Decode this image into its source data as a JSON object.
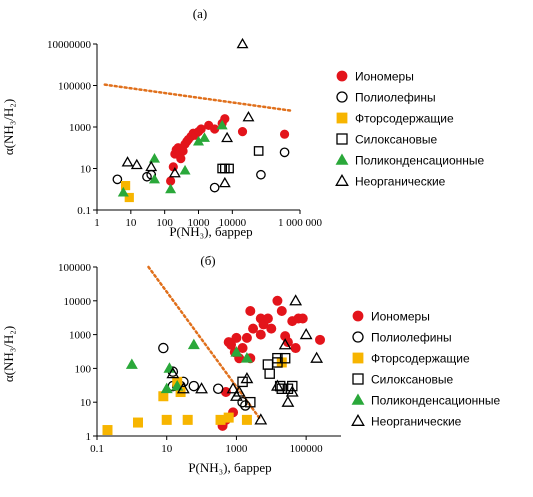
{
  "colors": {
    "ionomers": "#e3141b",
    "fluorinated": "#f7b500",
    "polycondensation": "#2aa83a",
    "trendline": "#e0701c",
    "black": "#000000"
  },
  "legend_labels": [
    "Иономеры",
    "Полиолефины",
    "Фторсодержащие",
    "Силоксановые",
    "Поликонденсационные",
    "Неорганические"
  ],
  "chart_data": [
    {
      "panel_label": "(а)",
      "type": "scatter",
      "xlabel": "P(NH₃), баррер",
      "ylabel": "α(NH₃/H₂)",
      "x_scale": "log",
      "y_scale": "log",
      "xlim": [
        1,
        1000000
      ],
      "ylim": [
        0.1,
        10000000
      ],
      "x_ticks": [
        1,
        10,
        100,
        1000,
        10000,
        1000000
      ],
      "x_tick_labels": [
        "1",
        "10",
        "100",
        "1000",
        "10000",
        "1 000 000"
      ],
      "y_ticks": [
        0.1,
        10,
        1000,
        100000,
        10000000
      ],
      "y_tick_labels": [
        "0.1",
        "10",
        "1000",
        "100000",
        "10000000"
      ],
      "trendline": [
        [
          1.7,
          110000
        ],
        [
          600000,
          6000
        ]
      ],
      "legend_placement": "right",
      "series": [
        {
          "name": "Иономеры",
          "marker": "circle-filled",
          "points": [
            [
              150,
              2.5
            ],
            [
              180,
              12
            ],
            [
              200,
              50
            ],
            [
              220,
              80
            ],
            [
              250,
              100
            ],
            [
              280,
              60
            ],
            [
              300,
              30
            ],
            [
              350,
              70
            ],
            [
              400,
              150
            ],
            [
              450,
              200
            ],
            [
              500,
              250
            ],
            [
              600,
              350
            ],
            [
              700,
              500
            ],
            [
              800,
              400
            ],
            [
              1000,
              600
            ],
            [
              1200,
              800
            ],
            [
              2000,
              1200
            ],
            [
              3000,
              800
            ],
            [
              5000,
              1500
            ],
            [
              6000,
              2500
            ],
            [
              20000,
              600
            ],
            [
              350000,
              450
            ]
          ]
        },
        {
          "name": "Полиолефины",
          "marker": "circle-open",
          "points": [
            [
              4,
              3
            ],
            [
              30,
              4
            ],
            [
              40,
              5
            ],
            [
              3000,
              1.2
            ],
            [
              70000,
              5
            ],
            [
              350000,
              60
            ]
          ]
        },
        {
          "name": "Фторсодержащие",
          "marker": "square-filled",
          "points": [
            [
              7,
              1.5
            ],
            [
              9,
              0.4
            ]
          ]
        },
        {
          "name": "Силоксановые",
          "marker": "square-open",
          "points": [
            [
              5000,
              10
            ],
            [
              6000,
              10
            ],
            [
              8000,
              10
            ],
            [
              60000,
              70
            ]
          ]
        },
        {
          "name": "Поликонденсационные",
          "marker": "triangle-filled",
          "points": [
            [
              6,
              0.7
            ],
            [
              50,
              30
            ],
            [
              50,
              3
            ],
            [
              150,
              1
            ],
            [
              400,
              8
            ],
            [
              1000,
              200
            ],
            [
              1500,
              300
            ],
            [
              5000,
              1200
            ]
          ]
        },
        {
          "name": "Неорганические",
          "marker": "triangle-open",
          "points": [
            [
              8,
              20
            ],
            [
              15,
              15
            ],
            [
              40,
              12
            ],
            [
              200,
              6
            ],
            [
              6000,
              2
            ],
            [
              7000,
              300
            ],
            [
              20000,
              10000000
            ],
            [
              30000,
              3000
            ]
          ]
        }
      ]
    },
    {
      "panel_label": "(б)",
      "type": "scatter",
      "xlabel": "P(NH₃), баррер",
      "ylabel": "α(NH₃/H₂)",
      "x_scale": "log",
      "y_scale": "log",
      "xlim": [
        0.1,
        1000000
      ],
      "ylim": [
        1,
        100000
      ],
      "x_ticks": [
        0.1,
        10,
        1000,
        100000
      ],
      "x_tick_labels": [
        "0.1",
        "10",
        "1000",
        "100000"
      ],
      "y_ticks": [
        1,
        10,
        100,
        1000,
        10000,
        100000
      ],
      "y_tick_labels": [
        "1",
        "10",
        "100",
        "1000",
        "10000",
        "100000"
      ],
      "trendline": [
        [
          3,
          100000
        ],
        [
          5000,
          3
        ]
      ],
      "legend_placement": "right",
      "series": [
        {
          "name": "Иономеры",
          "marker": "circle-filled",
          "points": [
            [
              400,
              2
            ],
            [
              500,
              20
            ],
            [
              500,
              3
            ],
            [
              600,
              600
            ],
            [
              700,
              500
            ],
            [
              800,
              5
            ],
            [
              900,
              300
            ],
            [
              1000,
              800
            ],
            [
              1200,
              200
            ],
            [
              1500,
              400
            ],
            [
              2000,
              800
            ],
            [
              2500,
              200
            ],
            [
              2500,
              5000
            ],
            [
              3000,
              1500
            ],
            [
              5000,
              1000
            ],
            [
              5000,
              3000
            ],
            [
              6000,
              2000
            ],
            [
              8000,
              3000
            ],
            [
              10000,
              1500
            ],
            [
              15000,
              10000
            ],
            [
              20000,
              5000
            ],
            [
              25000,
              900
            ],
            [
              30000,
              600
            ],
            [
              40000,
              2500
            ],
            [
              50000,
              400
            ],
            [
              60000,
              3000
            ],
            [
              80000,
              3000
            ],
            [
              250000,
              700
            ]
          ]
        },
        {
          "name": "Полиолефины",
          "marker": "circle-open",
          "points": [
            [
              8,
              400
            ],
            [
              15,
              30
            ],
            [
              15,
              80
            ],
            [
              20,
              30
            ],
            [
              25,
              30
            ],
            [
              30,
              40
            ],
            [
              60,
              30
            ],
            [
              300,
              25
            ],
            [
              1500,
              10
            ],
            [
              1800,
              8
            ]
          ]
        },
        {
          "name": "Фторсодержащие",
          "marker": "square-filled",
          "points": [
            [
              0.2,
              1.5
            ],
            [
              1.5,
              2.5
            ],
            [
              8,
              15
            ],
            [
              10,
              3
            ],
            [
              20,
              40
            ],
            [
              25,
              20
            ],
            [
              40,
              3
            ],
            [
              350,
              3
            ],
            [
              600,
              3.5
            ],
            [
              2000,
              3
            ],
            [
              20000,
              150
            ]
          ]
        },
        {
          "name": "Силоксановые",
          "marker": "square-open",
          "points": [
            [
              1500,
              40
            ],
            [
              2500,
              10
            ],
            [
              8000,
              130
            ],
            [
              9000,
              70
            ],
            [
              15000,
              150
            ],
            [
              15000,
              200
            ],
            [
              18000,
              30
            ],
            [
              20000,
              25
            ],
            [
              25000,
              200
            ],
            [
              30000,
              25
            ],
            [
              40000,
              30
            ]
          ]
        },
        {
          "name": "Поликонденсационные",
          "marker": "triangle-filled",
          "points": [
            [
              1,
              130
            ],
            [
              10,
              25
            ],
            [
              12,
              100
            ],
            [
              20,
              30
            ],
            [
              60,
              500
            ],
            [
              1000,
              300
            ],
            [
              2000,
              200
            ]
          ]
        },
        {
          "name": "Неорганические",
          "marker": "triangle-open",
          "points": [
            [
              15,
              70
            ],
            [
              30,
              25
            ],
            [
              100,
              25
            ],
            [
              800,
              25
            ],
            [
              1000,
              15
            ],
            [
              1200,
              20
            ],
            [
              2000,
              50
            ],
            [
              5000,
              3
            ],
            [
              15000,
              30
            ],
            [
              25000,
              500
            ],
            [
              30000,
              10
            ],
            [
              40000,
              20
            ],
            [
              50000,
              10000
            ],
            [
              100000,
              1000
            ],
            [
              200000,
              200
            ]
          ]
        }
      ]
    }
  ]
}
